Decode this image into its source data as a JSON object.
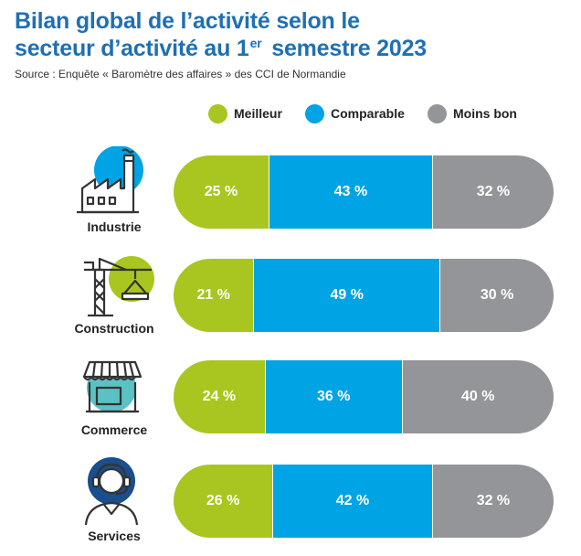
{
  "title": {
    "line1": "Bilan global de l’activité selon le",
    "line2_pre": "secteur d’activité au 1",
    "line2_sup": "er",
    "line2_post": "semestre 2023"
  },
  "source": "Source : Enquête « Baromètre des affaires » des CCI de Normandie",
  "colors": {
    "meilleur": "#a8c61f",
    "comparable": "#00a3e4",
    "moins_bon": "#939598",
    "title": "#1f6fb4"
  },
  "chart_data": {
    "type": "bar",
    "stacked": true,
    "orientation": "horizontal",
    "unit": "%",
    "title": "Bilan global de l’activité selon le secteur d’activité au 1er semestre 2023",
    "categories": [
      "Industrie",
      "Construction",
      "Commerce",
      "Services"
    ],
    "series": [
      {
        "name": "Meilleur",
        "values": [
          25,
          21,
          24,
          26
        ]
      },
      {
        "name": "Comparable",
        "values": [
          43,
          49,
          36,
          42
        ]
      },
      {
        "name": "Moins bon",
        "values": [
          32,
          30,
          40,
          32
        ]
      }
    ],
    "labels": [
      [
        "25 %",
        "43 %",
        "32 %"
      ],
      [
        "21 %",
        "49 %",
        "30 %"
      ],
      [
        "24 %",
        "36 %",
        "40 %"
      ],
      [
        "26 %",
        "42 %",
        "32 %"
      ]
    ],
    "legend_position": "top",
    "icons": [
      "factory-icon",
      "crane-icon",
      "shop-icon",
      "headset-icon"
    ]
  }
}
